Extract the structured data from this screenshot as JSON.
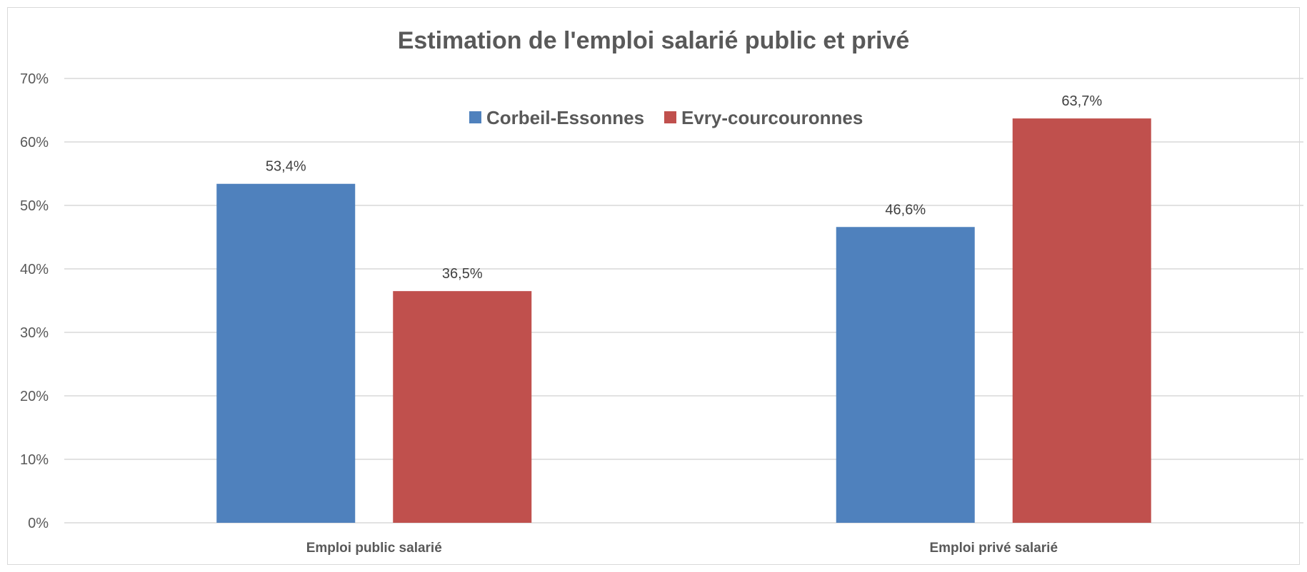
{
  "chart_data": {
    "type": "bar",
    "title": "Estimation de l'emploi salarié public et privé",
    "xlabel": "",
    "ylabel": "",
    "categories": [
      "Emploi public salarié",
      "Emploi privé salarié"
    ],
    "series": [
      {
        "name": "Corbeil-Essonnes",
        "values": [
          53.4,
          46.6
        ],
        "labels": [
          "53,4%",
          "46,6%"
        ],
        "color": "#4f81bd"
      },
      {
        "name": "Evry-courcouronnes",
        "values": [
          36.5,
          63.7
        ],
        "labels": [
          "36,5%",
          "63,7%"
        ],
        "color": "#c0504d"
      }
    ],
    "ylim": [
      0,
      70
    ],
    "yticks": [
      0,
      10,
      20,
      30,
      40,
      50,
      60,
      70
    ],
    "ytick_labels": [
      "0%",
      "10%",
      "20%",
      "30%",
      "40%",
      "50%",
      "60%",
      "70%"
    ],
    "grid": true,
    "legend_position": "top-center"
  }
}
